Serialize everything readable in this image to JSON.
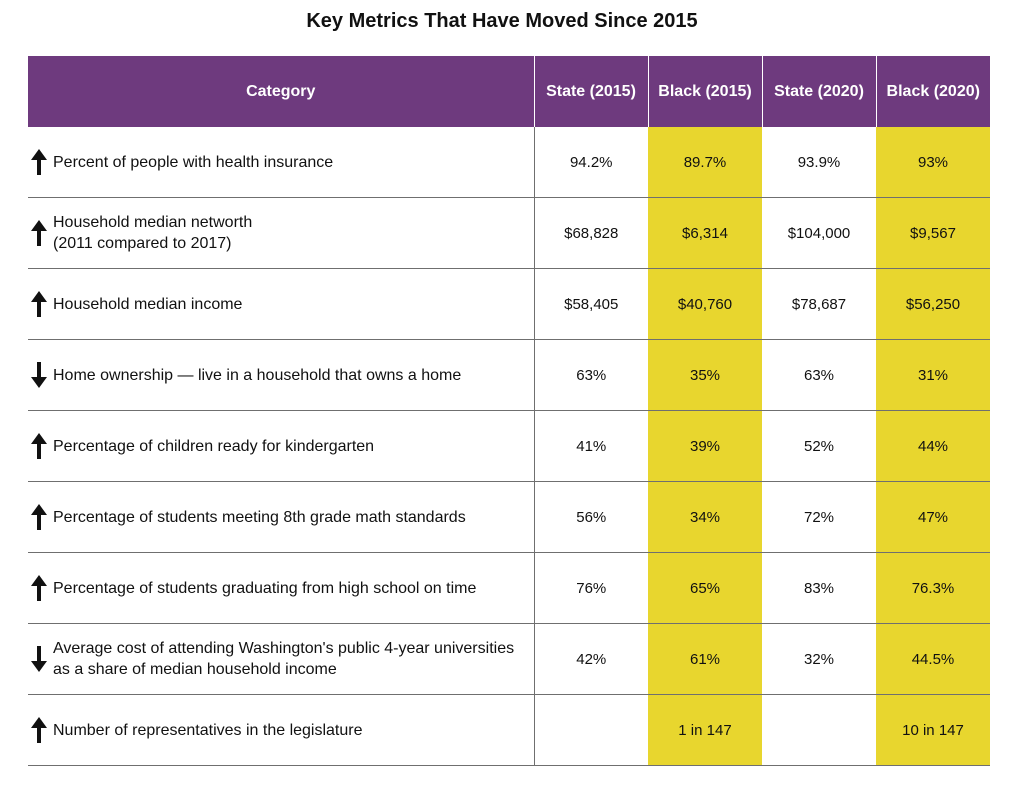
{
  "title": "Key Metrics That Have Moved Since 2015",
  "colors": {
    "header_bg": "#6e3a7e",
    "highlight": "#e8d62e"
  },
  "columns": [
    "Category",
    "State (2015)",
    "Black (2015)",
    "State (2020)",
    "Black (2020)"
  ],
  "rows": [
    {
      "trend": "up",
      "trend_icon": "arrow-up-icon",
      "category": "Percent of people with health insurance",
      "category_note": "",
      "state_2015": "94.2%",
      "black_2015": "89.7%",
      "state_2020": "93.9%",
      "black_2020": "93%"
    },
    {
      "trend": "up",
      "trend_icon": "arrow-up-icon",
      "category": "Household median networth",
      "category_note": "(2011 compared to 2017)",
      "state_2015": "$68,828",
      "black_2015": "$6,314",
      "state_2020": "$104,000",
      "black_2020": "$9,567"
    },
    {
      "trend": "up",
      "trend_icon": "arrow-up-icon",
      "category": "Household median income",
      "category_note": "",
      "state_2015": "$58,405",
      "black_2015": "$40,760",
      "state_2020": "$78,687",
      "black_2020": "$56,250"
    },
    {
      "trend": "down",
      "trend_icon": "arrow-down-icon",
      "category": "Home ownership — live in a household that owns a home",
      "category_note": "",
      "state_2015": "63%",
      "black_2015": "35%",
      "state_2020": "63%",
      "black_2020": "31%"
    },
    {
      "trend": "up",
      "trend_icon": "arrow-up-icon",
      "category": "Percentage of children ready for kindergarten",
      "category_note": "",
      "state_2015": "41%",
      "black_2015": "39%",
      "state_2020": "52%",
      "black_2020": "44%"
    },
    {
      "trend": "up",
      "trend_icon": "arrow-up-icon",
      "category": "Percentage of students meeting 8th grade math standards",
      "category_note": "",
      "state_2015": "56%",
      "black_2015": "34%",
      "state_2020": "72%",
      "black_2020": "47%"
    },
    {
      "trend": "up",
      "trend_icon": "arrow-up-icon",
      "category": "Percentage of students graduating from high school on time",
      "category_note": "",
      "state_2015": "76%",
      "black_2015": "65%",
      "state_2020": "83%",
      "black_2020": "76.3%"
    },
    {
      "trend": "down",
      "trend_icon": "arrow-down-icon",
      "category": "Average cost of attending Washington's public 4-year universities as a share of median household income",
      "category_note": "",
      "state_2015": "42%",
      "black_2015": "61%",
      "state_2020": "32%",
      "black_2020": "44.5%"
    },
    {
      "trend": "up",
      "trend_icon": "arrow-up-icon",
      "category": "Number of representatives in the legislature",
      "category_note": "",
      "state_2015": "",
      "black_2015": "1 in 147",
      "state_2020": "",
      "black_2020": "10 in 147"
    }
  ]
}
